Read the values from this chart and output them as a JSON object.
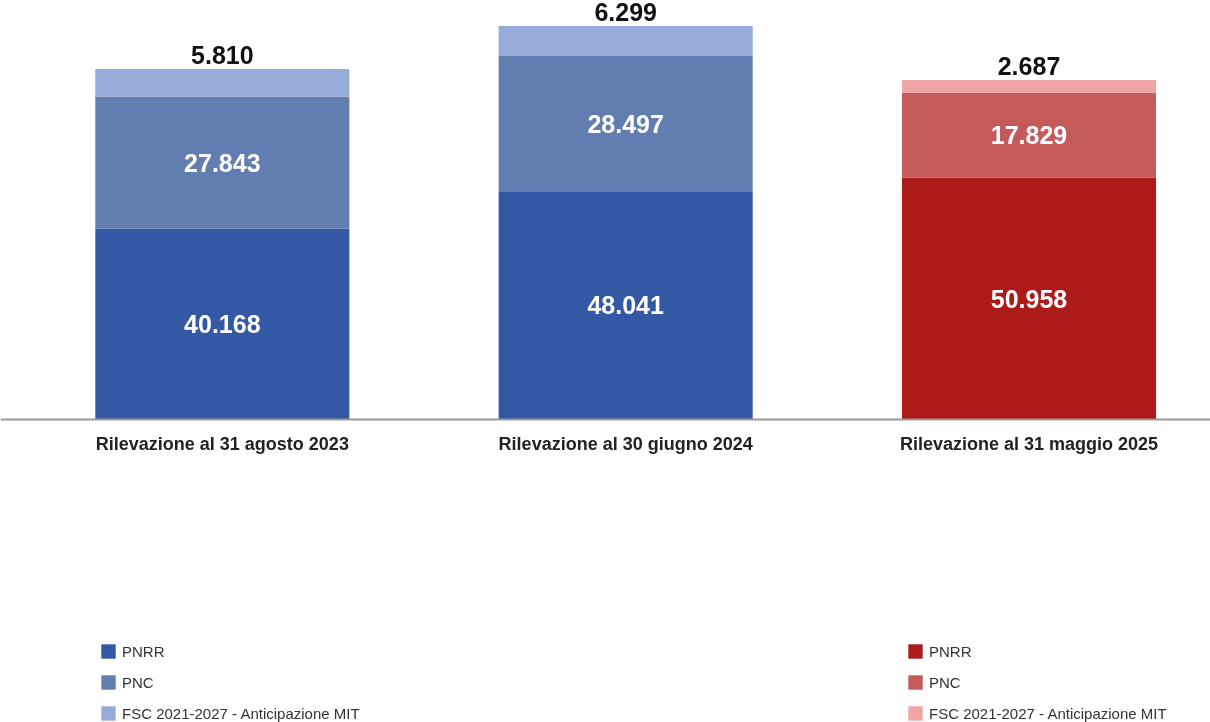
{
  "chart_data": {
    "type": "bar",
    "stacked": true,
    "legend": "bottom",
    "categories": [
      "Rilevazione al 31 agosto 2023",
      "Rilevazione al 30 giugno 2024",
      "Rilevazione al 31 maggio 2025"
    ],
    "series": [
      {
        "name": "PNRR",
        "color": "#3558a5",
        "values": [
          40168,
          48041,
          null
        ],
        "value_labels": [
          "40.168",
          "48.041",
          null
        ]
      },
      {
        "name": "PNC",
        "color": "#627eb0",
        "values": [
          27843,
          28497,
          null
        ],
        "value_labels": [
          "27.843",
          "28.497",
          null
        ]
      },
      {
        "name": "FSC 2021-2027 - Anticipazione MIT",
        "color": "#97abd9",
        "values": [
          5810,
          6299,
          null
        ],
        "value_labels": [
          "5.810",
          "6.299",
          null
        ]
      },
      {
        "name": "PNRR",
        "color": "#ad1a1a",
        "values": [
          null,
          null,
          50958
        ],
        "value_labels": [
          null,
          null,
          "50.958"
        ]
      },
      {
        "name": "PNC",
        "color": "#c55a5a",
        "values": [
          null,
          null,
          17829
        ],
        "value_labels": [
          null,
          null,
          "17.829"
        ]
      },
      {
        "name": "FSC 2021-2027 - Anticipazione MIT",
        "color": "#f2a5a5",
        "values": [
          null,
          null,
          2687
        ],
        "value_labels": [
          null,
          null,
          "2.687"
        ]
      }
    ]
  }
}
